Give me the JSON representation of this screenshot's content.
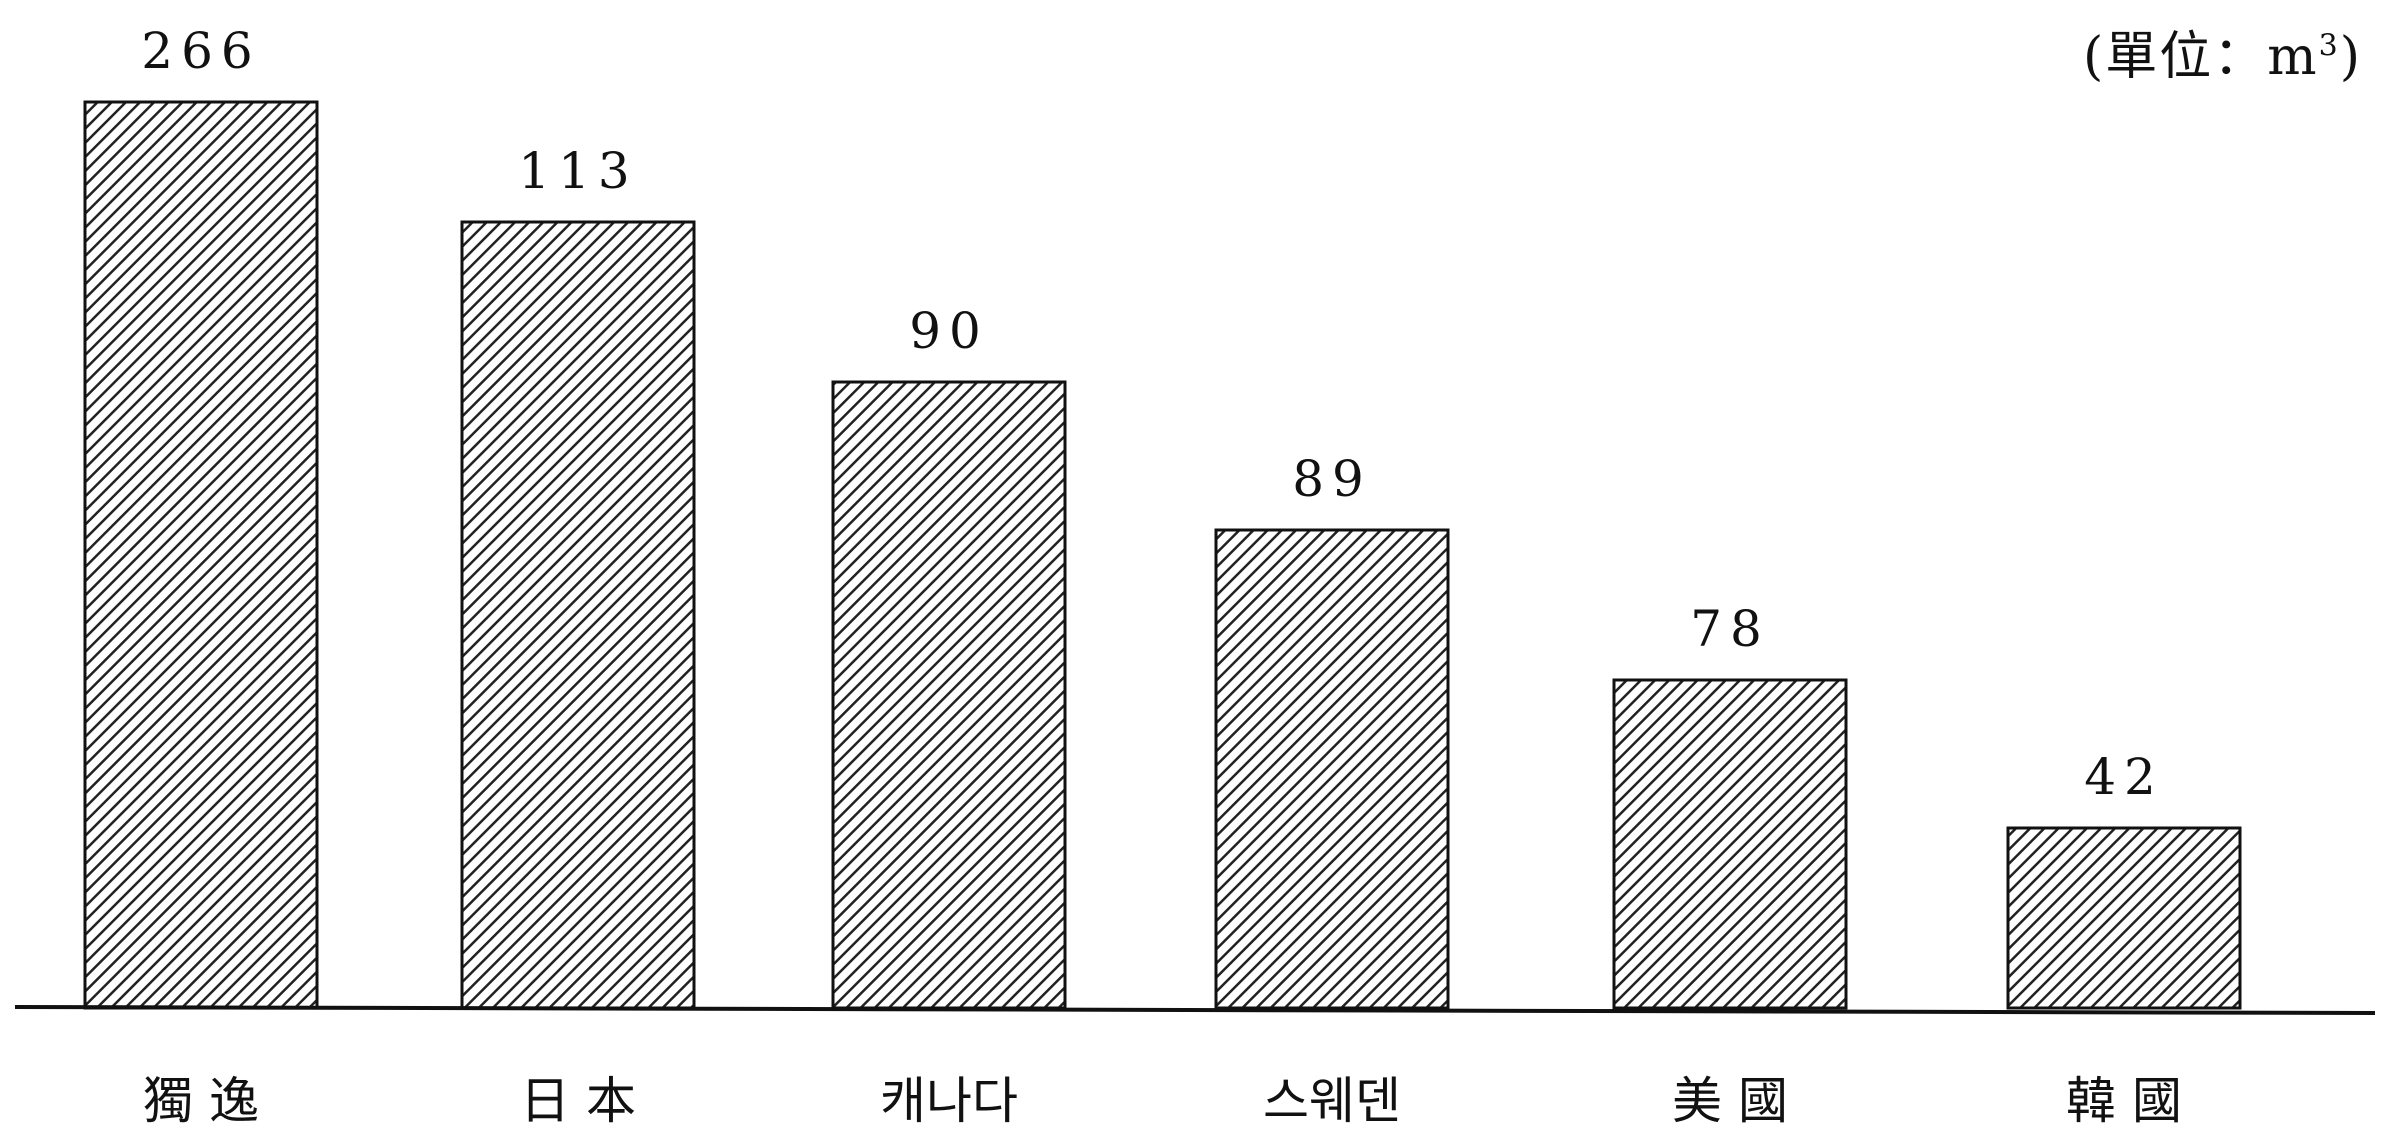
{
  "chart_data": {
    "type": "bar",
    "title": "",
    "unit_label": {
      "prefix": "(單位：m",
      "superscript": "3",
      "suffix": ")"
    },
    "xlabel": "",
    "ylabel": "",
    "categories": [
      "獨 逸",
      "日 本",
      "캐나다",
      "스웨덴",
      "美 國",
      "韓 國"
    ],
    "values": [
      266,
      113,
      90,
      89,
      78,
      42
    ],
    "data_labels": [
      "266",
      "113",
      "90",
      "89",
      "78",
      "42"
    ],
    "ylim": [
      0,
      266
    ],
    "grid": false,
    "legend": "none",
    "bar_fill": "hatched",
    "colors": {
      "bar_stroke": "#111111",
      "hatch": "#222222",
      "background": "#ffffff",
      "axis": "#111111"
    }
  }
}
